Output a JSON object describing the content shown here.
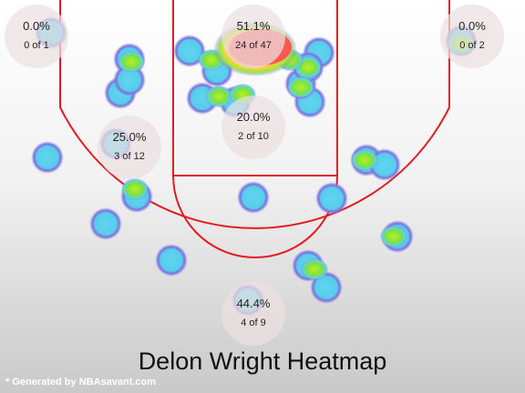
{
  "title": "Delon Wright Heatmap",
  "credit": "* Generated by NBAsavant.com",
  "colors": {
    "court_line": "#e31b23",
    "cold_fill": "#5ed2ee",
    "cold_ring": "#7a70dc",
    "mid_fill": "#7ee04a",
    "hot_fill": "#ff5a5a",
    "zone_bubble": "#ebe1e1"
  },
  "chart_data": {
    "type": "heatmap",
    "title": "Delon Wright Heatmap",
    "zones": [
      {
        "id": "left-corner-three",
        "pct": "0.0%",
        "made": 0,
        "attempts": 1,
        "label": "0 of 1"
      },
      {
        "id": "restricted-area",
        "pct": "51.1%",
        "made": 24,
        "attempts": 47,
        "label": "24 of 47"
      },
      {
        "id": "right-corner-three",
        "pct": "0.0%",
        "made": 0,
        "attempts": 2,
        "label": "0 of 2"
      },
      {
        "id": "left-mid-range",
        "pct": "25.0%",
        "made": 3,
        "attempts": 12,
        "label": "3 of 12"
      },
      {
        "id": "paint-non-ra",
        "pct": "20.0%",
        "made": 2,
        "attempts": 10,
        "label": "2 of 10"
      },
      {
        "id": "above-break-three",
        "pct": "44.4%",
        "made": 4,
        "attempts": 9,
        "label": "4 of 9"
      }
    ]
  }
}
